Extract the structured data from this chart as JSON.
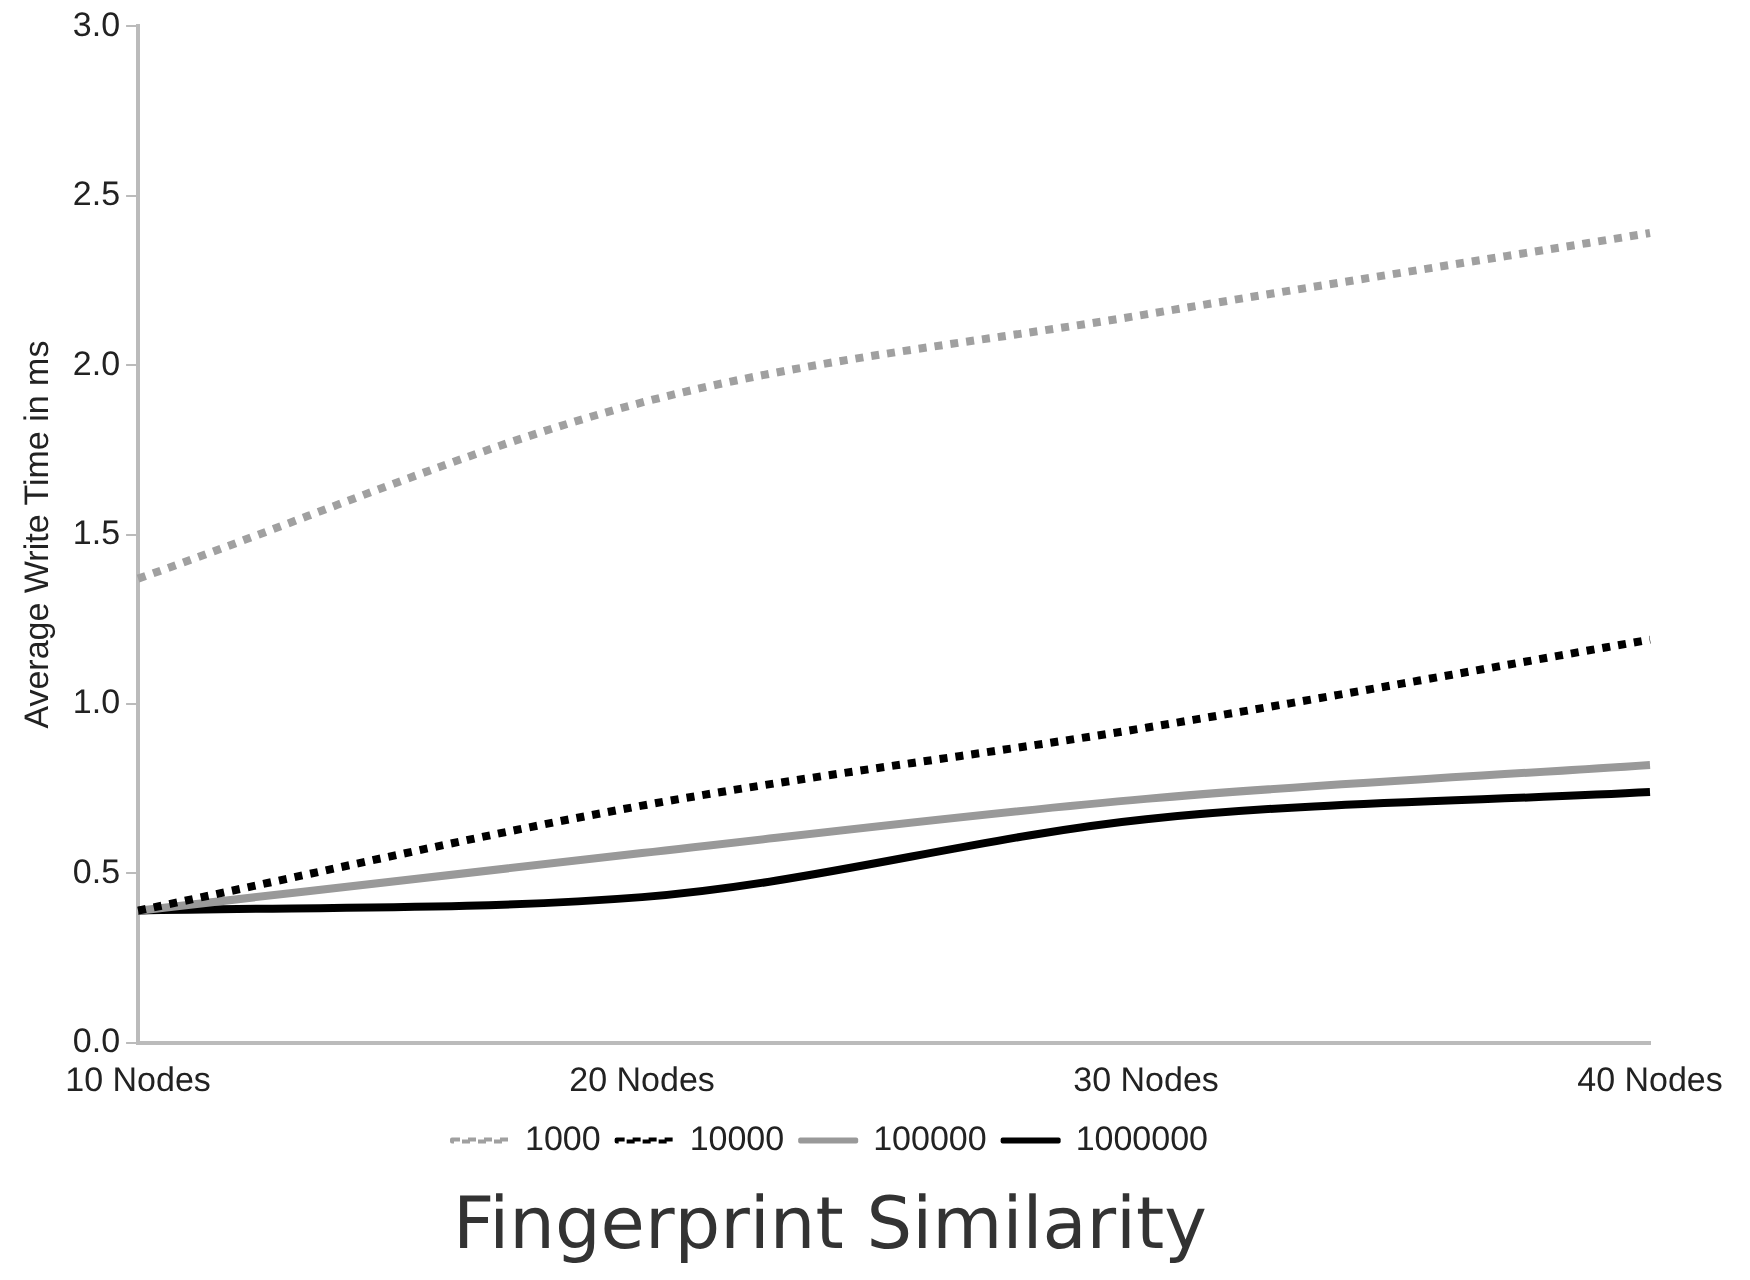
{
  "chart_data": {
    "type": "line",
    "title": "Fingerprint Similarity",
    "ylabel": "Average Write Time in ms",
    "categories": [
      "10 Nodes",
      "20 Nodes",
      "30 Nodes",
      "40 Nodes"
    ],
    "ylim": [
      0,
      3
    ],
    "yticks": [
      {
        "value": 0,
        "label": "0.0"
      },
      {
        "value": 0.5,
        "label": "0.5"
      },
      {
        "value": 1,
        "label": "1.0"
      },
      {
        "value": 1.5,
        "label": "1.5"
      },
      {
        "value": 2,
        "label": "2.0"
      },
      {
        "value": 2.5,
        "label": "2.5"
      },
      {
        "value": 3,
        "label": "3.0"
      }
    ],
    "grid": false,
    "legend": "bottom",
    "marker": "none",
    "series": [
      {
        "name": "1000",
        "color": "#a0a0a0",
        "line_style": "dotted",
        "values": [
          1.37,
          1.89,
          2.15,
          2.39
        ]
      },
      {
        "name": "10000",
        "color": "#000000",
        "line_style": "dotted",
        "values": [
          0.39,
          0.7,
          0.93,
          1.19
        ]
      },
      {
        "name": "100000",
        "color": "#999999",
        "line_style": "solid",
        "values": [
          0.39,
          0.56,
          0.72,
          0.82
        ]
      },
      {
        "name": "1000000",
        "color": "#000000",
        "line_style": "solid",
        "values": [
          0.39,
          0.43,
          0.66,
          0.74
        ]
      }
    ]
  }
}
